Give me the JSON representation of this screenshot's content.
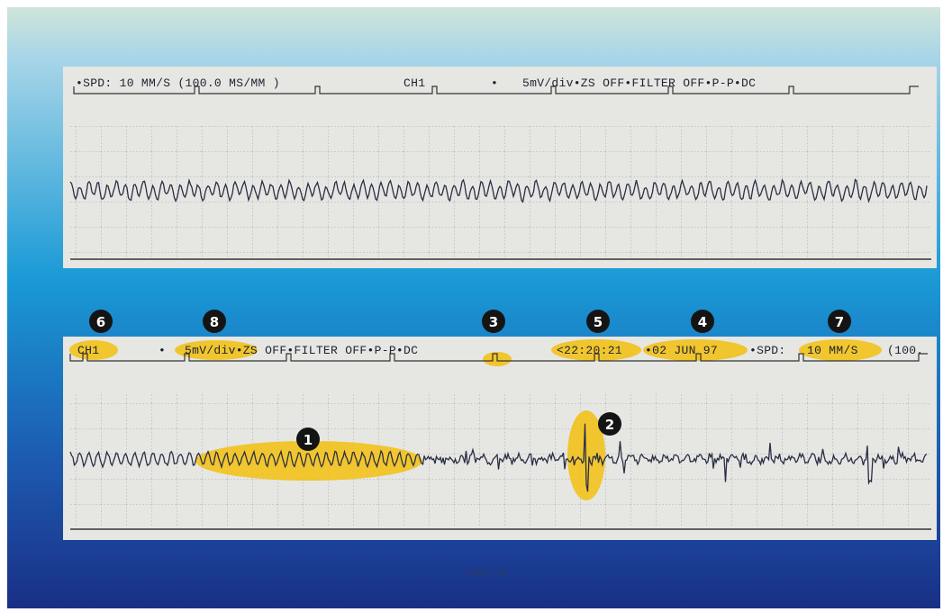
{
  "strips": [
    {
      "header": [
        "•SPD: 10 MM/S (100.0 MS/MM )",
        "CH1",
        "•",
        "5mV/div•ZS OFF•FILTER OFF•P-P•DC"
      ]
    },
    {
      "header": [
        "CH1",
        "•",
        "5mV/div•ZS OFF•FILTER OFF•P-P•DC",
        "<22:20:21",
        "•02 JUN 97",
        "•SPD:",
        "10 MM/S",
        "(100."
      ]
    }
  ],
  "callouts": [
    "6",
    "8",
    "3",
    "5",
    "4",
    "7",
    "1",
    "2"
  ],
  "footer": "CMBT 4b"
}
